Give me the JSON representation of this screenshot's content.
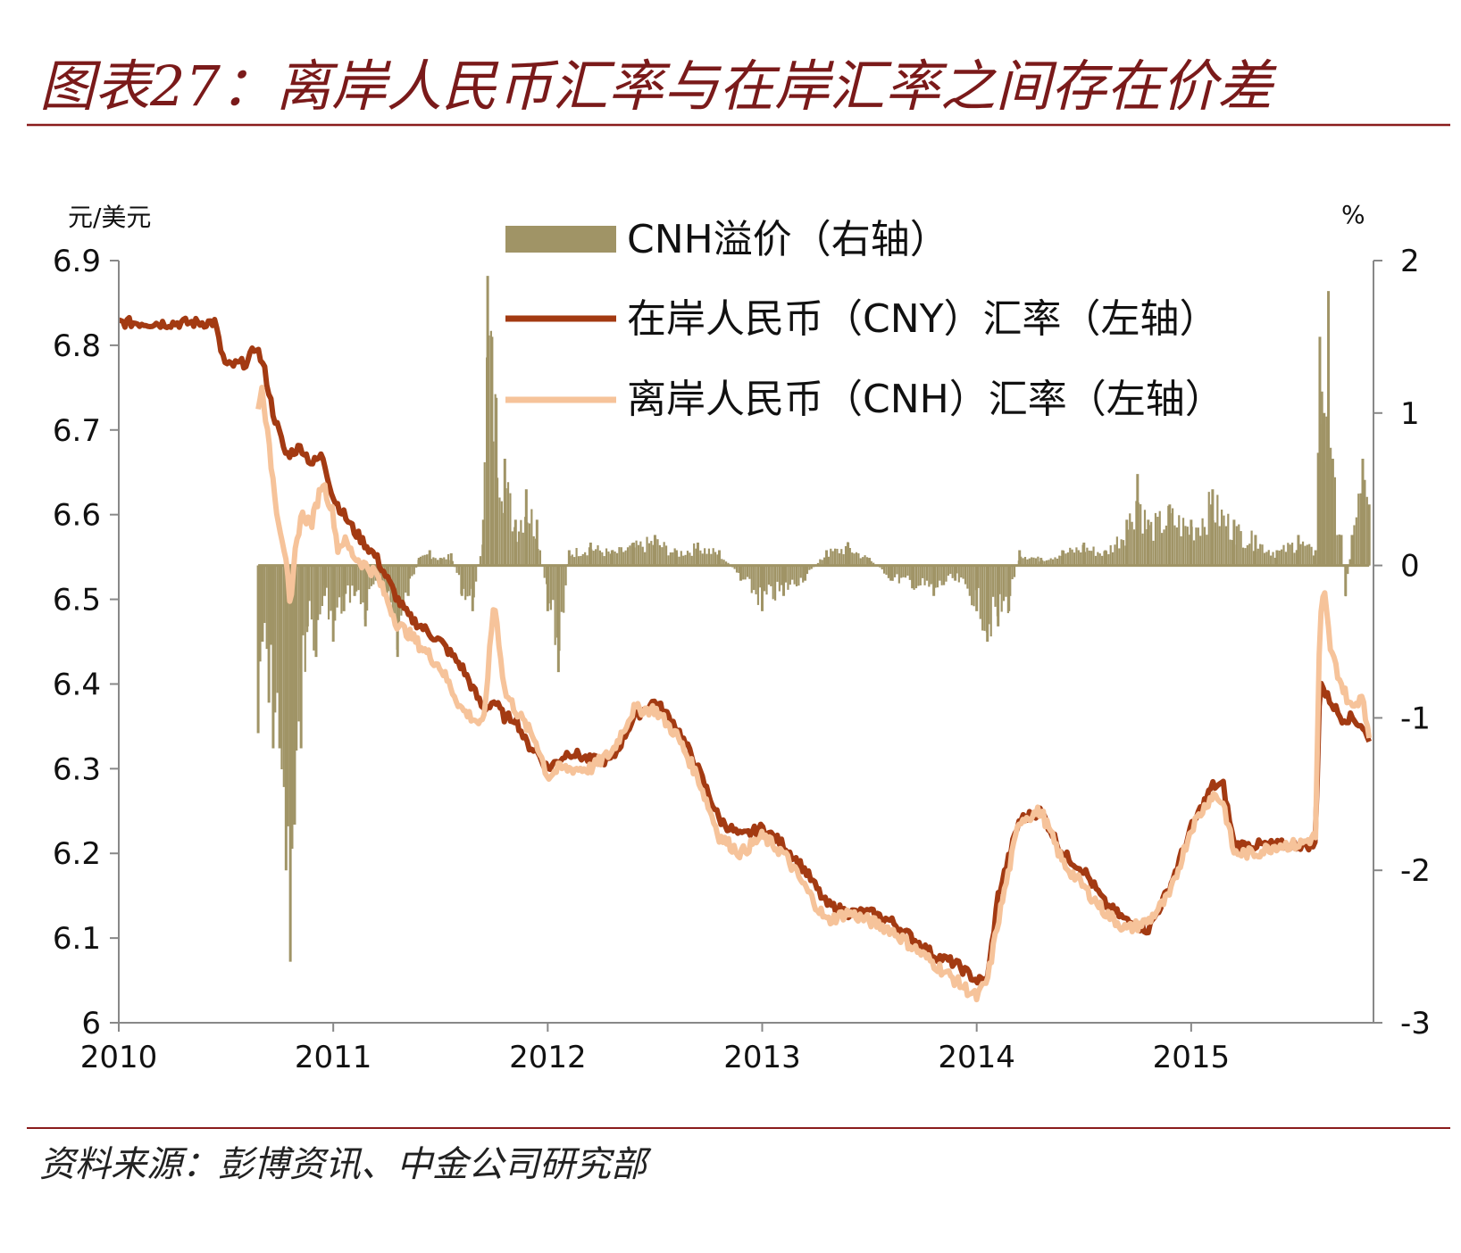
{
  "header": {
    "title": "图表27：离岸人民币汇率与在岸汇率之间存在价差"
  },
  "footer": {
    "source": "资料来源：彭博资讯、中金公司研究部"
  },
  "colors": {
    "rule": "#8a1c1c",
    "premium": "#a09466",
    "cny": "#a33a12",
    "cnh": "#f6c39a",
    "axis": "#888888"
  },
  "chart_data": {
    "type": "line",
    "yunit_left": "元/美元",
    "yunit_right": "%",
    "xlim": [
      2010.0,
      2015.85
    ],
    "ylim_left": [
      6.0,
      6.9
    ],
    "ylim_right": [
      -3,
      2
    ],
    "yticks_left": [
      "6.9",
      "6.8",
      "6.7",
      "6.6",
      "6.5",
      "6.4",
      "6.3",
      "6.2",
      "6.1",
      "6"
    ],
    "yticks_right": [
      "2",
      "1",
      "0",
      "-1",
      "-2",
      "-3"
    ],
    "xticks": [
      "2010",
      "2011",
      "2012",
      "2013",
      "2014",
      "2015"
    ],
    "legend": [
      {
        "key": "premium",
        "label": "CNH溢价（右轴）"
      },
      {
        "key": "cny",
        "label": "在岸人民币（CNY）汇率（左轴）"
      },
      {
        "key": "cnh",
        "label": "离岸人民币（CNH）汇率（左轴）"
      }
    ],
    "series": {
      "cny": {
        "x": [
          2010.0,
          2010.2,
          2010.45,
          2010.47,
          2010.5,
          2010.6,
          2010.64,
          2010.68,
          2010.72,
          2010.78,
          2010.85,
          2010.9,
          2010.95,
          2011.0,
          2011.05,
          2011.1,
          2011.2,
          2011.3,
          2011.35,
          2011.5,
          2011.6,
          2011.7,
          2011.75,
          2011.8,
          2011.85,
          2011.9,
          2011.95,
          2012.0,
          2012.1,
          2012.2,
          2012.3,
          2012.4,
          2012.5,
          2012.6,
          2012.7,
          2012.8,
          2012.9,
          2013.0,
          2013.1,
          2013.2,
          2013.3,
          2013.4,
          2013.5,
          2013.6,
          2013.7,
          2013.8,
          2013.9,
          2014.0,
          2014.05,
          2014.1,
          2014.2,
          2014.3,
          2014.4,
          2014.5,
          2014.6,
          2014.7,
          2014.8,
          2014.9,
          2015.0,
          2015.1,
          2015.15,
          2015.2,
          2015.3,
          2015.4,
          2015.5,
          2015.58,
          2015.6,
          2015.62,
          2015.65,
          2015.7,
          2015.75,
          2015.8,
          2015.83
        ],
        "values": [
          6.827,
          6.826,
          6.827,
          6.8,
          6.775,
          6.78,
          6.8,
          6.77,
          6.72,
          6.67,
          6.68,
          6.66,
          6.67,
          6.62,
          6.6,
          6.58,
          6.55,
          6.5,
          6.48,
          6.45,
          6.42,
          6.37,
          6.38,
          6.36,
          6.36,
          6.33,
          6.32,
          6.3,
          6.32,
          6.31,
          6.31,
          6.36,
          6.38,
          6.35,
          6.3,
          6.24,
          6.22,
          6.23,
          6.21,
          6.18,
          6.14,
          6.13,
          6.13,
          6.12,
          6.1,
          6.08,
          6.07,
          6.05,
          6.05,
          6.15,
          6.24,
          6.25,
          6.2,
          6.18,
          6.14,
          6.12,
          6.11,
          6.16,
          6.23,
          6.28,
          6.28,
          6.21,
          6.21,
          6.21,
          6.21,
          6.21,
          6.41,
          6.39,
          6.38,
          6.36,
          6.36,
          6.35,
          6.33
        ]
      },
      "cnh": {
        "x": [
          2010.65,
          2010.67,
          2010.7,
          2010.74,
          2010.78,
          2010.8,
          2010.82,
          2010.85,
          2010.9,
          2010.95,
          2011.0,
          2011.02,
          2011.05,
          2011.1,
          2011.2,
          2011.3,
          2011.35,
          2011.5,
          2011.6,
          2011.7,
          2011.75,
          2011.8,
          2011.85,
          2011.9,
          2011.95,
          2012.0,
          2012.05,
          2012.1,
          2012.2,
          2012.3,
          2012.4,
          2012.5,
          2012.6,
          2012.7,
          2012.8,
          2012.9,
          2013.0,
          2013.1,
          2013.2,
          2013.3,
          2013.4,
          2013.5,
          2013.6,
          2013.7,
          2013.8,
          2013.9,
          2014.0,
          2014.05,
          2014.1,
          2014.2,
          2014.3,
          2014.4,
          2014.5,
          2014.6,
          2014.7,
          2014.8,
          2014.9,
          2015.0,
          2015.1,
          2015.15,
          2015.2,
          2015.3,
          2015.4,
          2015.5,
          2015.58,
          2015.6,
          2015.62,
          2015.65,
          2015.7,
          2015.75,
          2015.8,
          2015.83
        ],
        "values": [
          6.73,
          6.75,
          6.68,
          6.6,
          6.55,
          6.48,
          6.55,
          6.6,
          6.59,
          6.64,
          6.6,
          6.56,
          6.57,
          6.55,
          6.53,
          6.47,
          6.46,
          6.42,
          6.37,
          6.35,
          6.5,
          6.39,
          6.37,
          6.35,
          6.33,
          6.29,
          6.3,
          6.3,
          6.3,
          6.32,
          6.37,
          6.37,
          6.34,
          6.29,
          6.22,
          6.2,
          6.22,
          6.2,
          6.16,
          6.12,
          6.13,
          6.12,
          6.11,
          6.09,
          6.07,
          6.05,
          6.03,
          6.05,
          6.12,
          6.24,
          6.25,
          6.19,
          6.16,
          6.13,
          6.11,
          6.12,
          6.15,
          6.23,
          6.27,
          6.26,
          6.2,
          6.2,
          6.21,
          6.21,
          6.22,
          6.47,
          6.51,
          6.44,
          6.4,
          6.37,
          6.39,
          6.33
        ]
      },
      "premium": {
        "x": [
          2010.65,
          2010.67,
          2010.7,
          2010.72,
          2010.75,
          2010.78,
          2010.8,
          2010.82,
          2010.85,
          2010.88,
          2010.92,
          2010.96,
          2011.0,
          2011.05,
          2011.1,
          2011.15,
          2011.2,
          2011.25,
          2011.3,
          2011.35,
          2011.4,
          2011.45,
          2011.5,
          2011.55,
          2011.6,
          2011.65,
          2011.7,
          2011.72,
          2011.74,
          2011.76,
          2011.8,
          2011.85,
          2011.9,
          2011.95,
          2012.0,
          2012.05,
          2012.1,
          2012.2,
          2012.3,
          2012.4,
          2012.5,
          2012.6,
          2012.7,
          2012.8,
          2012.9,
          2013.0,
          2013.1,
          2013.2,
          2013.3,
          2013.4,
          2013.5,
          2013.6,
          2013.7,
          2013.8,
          2013.9,
          2014.0,
          2014.05,
          2014.1,
          2014.15,
          2014.2,
          2014.3,
          2014.4,
          2014.5,
          2014.6,
          2014.7,
          2014.75,
          2014.8,
          2014.9,
          2015.0,
          2015.1,
          2015.2,
          2015.3,
          2015.4,
          2015.5,
          2015.58,
          2015.6,
          2015.62,
          2015.64,
          2015.66,
          2015.7,
          2015.72,
          2015.75,
          2015.8,
          2015.83
        ],
        "values": [
          -1.1,
          -0.5,
          -0.9,
          -1.2,
          -1.2,
          -2.0,
          -2.6,
          -1.7,
          -1.2,
          -0.4,
          -0.6,
          -0.2,
          -0.5,
          -0.3,
          -0.2,
          -0.4,
          -0.1,
          -0.2,
          -0.6,
          -0.2,
          0.05,
          0.1,
          0.05,
          0.08,
          -0.2,
          -0.3,
          0.3,
          1.9,
          1.5,
          1.1,
          0.7,
          0.3,
          0.5,
          0.3,
          -0.3,
          -0.7,
          0.1,
          0.15,
          0.1,
          0.15,
          0.2,
          0.1,
          0.15,
          0.1,
          -0.1,
          -0.3,
          -0.2,
          -0.1,
          0.1,
          0.15,
          0.05,
          -0.1,
          -0.15,
          -0.2,
          -0.1,
          -0.3,
          -0.5,
          -0.4,
          -0.3,
          0.1,
          0.05,
          0.1,
          0.15,
          0.1,
          0.3,
          0.6,
          0.3,
          0.4,
          0.3,
          0.5,
          0.3,
          0.2,
          0.1,
          0.2,
          0.1,
          1.5,
          1.0,
          1.8,
          0.7,
          0.2,
          -0.2,
          0.2,
          0.7,
          0.4
        ]
      }
    }
  }
}
